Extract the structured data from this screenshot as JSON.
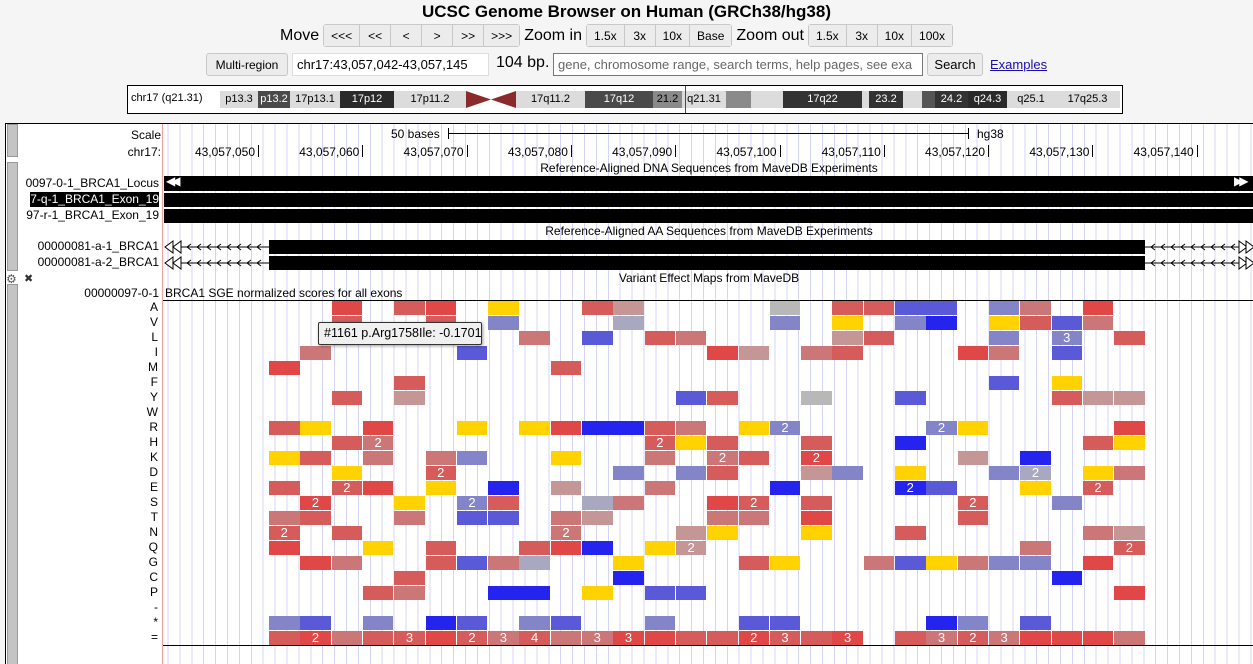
{
  "header": {
    "title": "UCSC Genome Browser on Human (GRCh38/hg38)"
  },
  "nav": {
    "move_label": "Move",
    "move_buttons": [
      "<<<",
      "<<",
      "<",
      ">",
      ">>",
      ">>>"
    ],
    "zoom_in_label": "Zoom in",
    "zoom_in_buttons": [
      "1.5x",
      "3x",
      "10x",
      "Base"
    ],
    "zoom_out_label": "Zoom out",
    "zoom_out_buttons": [
      "1.5x",
      "3x",
      "10x",
      "100x"
    ]
  },
  "position": {
    "multi_region": "Multi-region",
    "value": "chr17:43,057,042-43,057,145",
    "size": "104 bp.",
    "search_placeholder": "gene, chromosome range, search terms, help pages, see exa",
    "search_button": "Search",
    "examples_link": "Examples"
  },
  "ideogram": {
    "label": "chr17 (q21.31)",
    "highlight_color": "#ff0000",
    "bands": [
      {
        "name": "p13.3",
        "color": "#dcdcdc",
        "text": "#000"
      },
      {
        "name": "p13.2",
        "color": "#4a4a4a",
        "text": "#fff"
      },
      {
        "name": "17p13.1",
        "color": "#dcdcdc",
        "text": "#000"
      },
      {
        "name": "17p12",
        "color": "#2a2a2a",
        "text": "#fff"
      },
      {
        "name": "17p11.2",
        "color": "#dcdcdc",
        "text": "#000"
      },
      {
        "name": "",
        "color": "centromere",
        "text": "#fff"
      },
      {
        "name": "17q11.2",
        "color": "#dcdcdc",
        "text": "#000"
      },
      {
        "name": "17q12",
        "color": "#4a4a4a",
        "text": "#fff"
      },
      {
        "name": "21.2",
        "color": "#8a8a8a",
        "text": "#000"
      },
      {
        "name": "q21.31",
        "color": "#dcdcdc",
        "text": "#000"
      },
      {
        "name": "",
        "color": "#8a8a8a",
        "text": "#000"
      },
      {
        "name": "",
        "color": "#dcdcdc",
        "text": "#000"
      },
      {
        "name": "17q22",
        "color": "#333333",
        "text": "#fff"
      },
      {
        "name": "",
        "color": "#dcdcdc",
        "text": "#000"
      },
      {
        "name": "23.2",
        "color": "#333333",
        "text": "#fff"
      },
      {
        "name": "",
        "color": "#dcdcdc",
        "text": "#000"
      },
      {
        "name": "",
        "color": "#555555",
        "text": "#fff"
      },
      {
        "name": "24.2",
        "color": "#333333",
        "text": "#fff"
      },
      {
        "name": "q24.3",
        "color": "#2a2a2a",
        "text": "#fff"
      },
      {
        "name": "q25.1",
        "color": "#dcdcdc",
        "text": "#000"
      },
      {
        "name": "17q25.3",
        "color": "#dcdcdc",
        "text": "#000"
      }
    ]
  },
  "ruler": {
    "scale_label": "Scale",
    "scale_text": "50 bases",
    "assembly": "hg38",
    "chrom_label": "chr17:",
    "ticks": [
      "43,057,050",
      "43,057,060",
      "43,057,070",
      "43,057,080",
      "43,057,090",
      "43,057,100",
      "43,057,110",
      "43,057,120",
      "43,057,130",
      "43,057,140"
    ]
  },
  "dna_track": {
    "title": "Reference-Aligned DNA Sequences from MaveDB Experiments",
    "items": [
      {
        "label": "0097-0-1_BRCA1_Locus",
        "selected": false
      },
      {
        "label": "7-q-1_BRCA1_Exon_19",
        "selected": true
      },
      {
        "label": "97-r-1_BRCA1_Exon_19",
        "selected": false
      }
    ]
  },
  "aa_track": {
    "title": "Reference-Aligned AA Sequences from MaveDB Experiments",
    "items": [
      {
        "label": "00000081-a-1_BRCA1"
      },
      {
        "label": "00000081-a-2_BRCA1"
      }
    ]
  },
  "effect_track": {
    "title": "Variant Effect Maps from MaveDB",
    "item_label": "00000097-0-1",
    "description": "BRCA1 SGE normalized scores for all exons"
  },
  "tooltip": "#1161 p.Arg1758Ile: -0.1701",
  "heatmap": {
    "palette": {
      "R": "#e04848",
      "r": "#d65c5c",
      "s": "#cc7777",
      "m": "#c49696",
      "g": "#b8b8b8",
      "q": "#a8a8c0",
      "p": "#8484c8",
      "b": "#5a5ad8",
      "B": "#2424ee",
      "Y": "#ffd200"
    },
    "rows": [
      {
        "aa": "A",
        "cells": "..R.rR.Y..rm....g.rrbb.ps.R.",
        "labels": {}
      },
      {
        "aa": "V",
        "cells": "..r..r.p...q....p.Y.pB.Yrbs.",
        "labels": {}
      },
      {
        "aa": "L",
        "cells": "...r....s.b.rs....mr...p.p.r",
        "labels": {
          "25": "3"
        }
      },
      {
        "aa": "I",
        "cells": ".s....b.......Rm.sr...Rs.b..",
        "labels": {}
      },
      {
        "aa": "M",
        "cells": "R........r..................",
        "labels": {}
      },
      {
        "aa": "F",
        "cells": "....r..................b.Y..",
        "labels": {}
      },
      {
        "aa": "Y",
        "cells": "..r.m........br..g..b....rmm",
        "labels": {}
      },
      {
        "aa": "W",
        "cells": "............................",
        "labels": {}
      },
      {
        "aa": "R",
        "cells": "rY.R..Y.YRBBrs.Yp....pY....R",
        "labels": {
          "16": "2",
          "21": "2"
        }
      },
      {
        "aa": "H",
        "cells": "..rs........rYr..r..B.....rY",
        "labels": {
          "3": "2",
          "12": "2"
        }
      },
      {
        "aa": "K",
        "cells": "Yr.s.sp..Y..s.sr.R....m.B...",
        "labels": {
          "14": "2",
          "17": "2"
        }
      },
      {
        "aa": "D",
        "cells": "..Y..r.....p.pr..mp.Y..pq.Ys",
        "labels": {
          "5": "2",
          "24": "2"
        }
      },
      {
        "aa": "E",
        "cells": "r.rR.Y.B.m..s...B...Bb..Y.r.",
        "labels": {
          "2": "2",
          "20": "2",
          "26": "2"
        }
      },
      {
        "aa": "S",
        "cells": ".R..Y.pr..qs..Rr.r....r..p..",
        "labels": {
          "1": "2",
          "6": "2",
          "15": "2",
          "22": "2"
        }
      },
      {
        "aa": "T",
        "cells": "sr..s.bb.sm...ss.R....r.....",
        "labels": {}
      },
      {
        "aa": "N",
        "cells": "r.r......s...mY..Y..r.....sm",
        "labels": {
          "0": "2",
          "9": "2"
        }
      },
      {
        "aa": "Q",
        "cells": "R..Y.r..rRB.Ym..........s..r",
        "labels": {
          "13": "2",
          "27": "2"
        }
      },
      {
        "aa": "G",
        "cells": ".Rs..rbsq..Y...rY..sbYspp.R.",
        "labels": {}
      },
      {
        "aa": "C",
        "cells": "....r......B.............B..",
        "labels": {}
      },
      {
        "aa": "P",
        "cells": "...rs..BB.Y.bb.............R",
        "labels": {}
      },
      {
        "aa": "-",
        "cells": "............................",
        "labels": {}
      },
      {
        "aa": "*",
        "cells": "pb.p.Bb.pb..p..bb....Bp.b...",
        "labels": {}
      },
      {
        "aa": "=",
        "cells": "rRsrrRrsrssRRrrRrrR.rsrsRRRs",
        "labels": {
          "1": "2",
          "4": "3",
          "6": "2",
          "7": "3",
          "8": "4",
          "10": "3",
          "11": "3",
          "15": "2",
          "16": "3",
          "18": "3",
          "21": "3",
          "22": "2",
          "23": "3"
        }
      }
    ]
  }
}
